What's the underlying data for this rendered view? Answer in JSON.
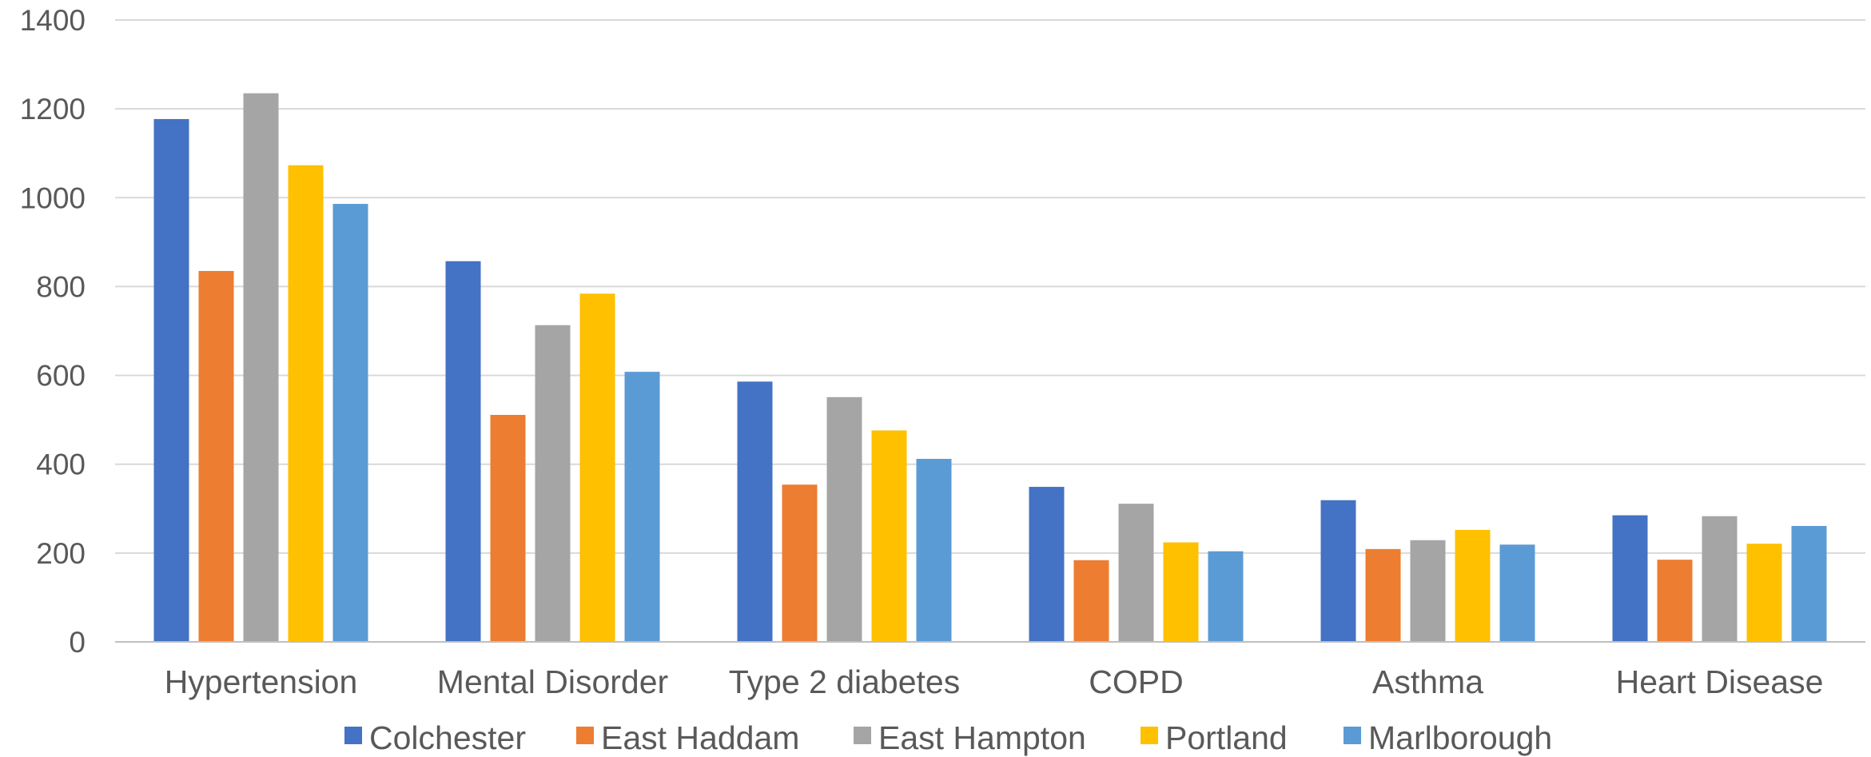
{
  "chart_data": {
    "type": "bar",
    "title": "",
    "xlabel": "",
    "ylabel": "",
    "ylim": [
      0,
      1400
    ],
    "yticks": [
      0,
      200,
      400,
      600,
      800,
      1000,
      1200,
      1400
    ],
    "grid": "horizontal",
    "legend_position": "bottom",
    "categories": [
      "Hypertension",
      "Mental Disorder",
      "Type 2 diabetes",
      "COPD",
      "Asthma",
      "Heart Disease"
    ],
    "series": [
      {
        "name": "Colchester",
        "color": "#4472C4",
        "values": [
          1177,
          857,
          586,
          349,
          319,
          285
        ]
      },
      {
        "name": "East Haddam",
        "color": "#ED7D31",
        "values": [
          835,
          511,
          354,
          184,
          209,
          185
        ]
      },
      {
        "name": "East Hampton",
        "color": "#A5A5A5",
        "values": [
          1235,
          713,
          551,
          311,
          229,
          283
        ]
      },
      {
        "name": "Portland",
        "color": "#FFC000",
        "values": [
          1073,
          784,
          476,
          224,
          252,
          221
        ]
      },
      {
        "name": "Marlborough",
        "color": "#5B9BD5",
        "values": [
          986,
          608,
          412,
          204,
          219,
          261
        ]
      }
    ]
  },
  "colors": {
    "gridline": "#D9D9D9",
    "axis": "#BFBFBF",
    "text": "#595959"
  }
}
